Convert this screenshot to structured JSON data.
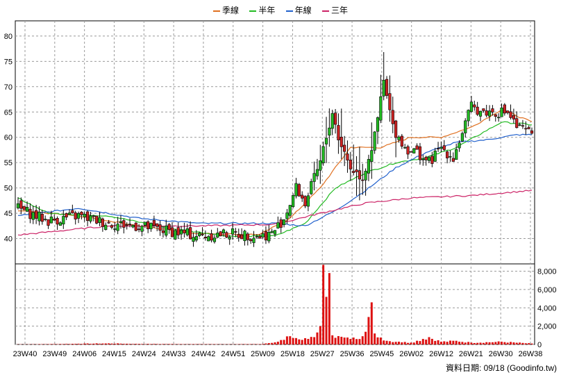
{
  "legend": [
    {
      "label": "季線",
      "color": "#e07020"
    },
    {
      "label": "半年",
      "color": "#22bb22"
    },
    {
      "label": "年線",
      "color": "#2060cc"
    },
    {
      "label": "三年",
      "color": "#cc2266"
    }
  ],
  "source_label": "資料日期: 09/18 (Goodinfo.tw)",
  "chart_data": [
    {
      "type": "candlestick",
      "title": "",
      "x_ticks": [
        "23W40",
        "23W49",
        "24W06",
        "24W15",
        "24W24",
        "24W33",
        "24W42",
        "24W51",
        "25W09",
        "25W18",
        "25W27",
        "25W36",
        "25W45",
        "26W02",
        "26W12",
        "26W21",
        "26W30",
        "26W38"
      ],
      "y_ticks": [
        40,
        45,
        50,
        55,
        60,
        65,
        70,
        75,
        80
      ],
      "ylim": [
        35,
        83
      ],
      "grid": true,
      "up_color": "#22bb22",
      "down_color": "#cc2222",
      "price_keypoints_week_close": [
        [
          0,
          46
        ],
        [
          10,
          43.5
        ],
        [
          20,
          44.5
        ],
        [
          30,
          43
        ],
        [
          40,
          42.5
        ],
        [
          50,
          41.5
        ],
        [
          60,
          40.5
        ],
        [
          70,
          41
        ],
        [
          80,
          40.5
        ],
        [
          84,
          41
        ],
        [
          88,
          44
        ],
        [
          92,
          50
        ],
        [
          95,
          47
        ],
        [
          100,
          55
        ],
        [
          104,
          65
        ],
        [
          106,
          60
        ],
        [
          110,
          54
        ],
        [
          114,
          52
        ],
        [
          118,
          60
        ],
        [
          121,
          71
        ],
        [
          124,
          62
        ],
        [
          128,
          58
        ],
        [
          132,
          57
        ],
        [
          136,
          55
        ],
        [
          140,
          58
        ],
        [
          144,
          56
        ],
        [
          147,
          61
        ],
        [
          150,
          66
        ],
        [
          154,
          65
        ],
        [
          158,
          65
        ],
        [
          162,
          65
        ],
        [
          165,
          62
        ],
        [
          168,
          61
        ],
        [
          170,
          61
        ]
      ],
      "ma_keypoints": {
        "季線": [
          [
            0,
            45.5
          ],
          [
            20,
            44.5
          ],
          [
            40,
            42.5
          ],
          [
            60,
            41
          ],
          [
            80,
            40.8
          ],
          [
            90,
            44
          ],
          [
            100,
            50
          ],
          [
            110,
            58
          ],
          [
            120,
            58
          ],
          [
            130,
            60
          ],
          [
            140,
            60
          ],
          [
            150,
            62
          ],
          [
            160,
            65.5
          ],
          [
            170,
            63
          ]
        ],
        "半年": [
          [
            0,
            48
          ],
          [
            10,
            45
          ],
          [
            30,
            44.5
          ],
          [
            50,
            42
          ],
          [
            70,
            40.5
          ],
          [
            85,
            40.5
          ],
          [
            95,
            43
          ],
          [
            105,
            50
          ],
          [
            115,
            53
          ],
          [
            125,
            55
          ],
          [
            135,
            56
          ],
          [
            145,
            58
          ],
          [
            160,
            63
          ],
          [
            170,
            62.5
          ]
        ],
        "年線": [
          [
            0,
            44.5
          ],
          [
            20,
            46
          ],
          [
            40,
            44
          ],
          [
            60,
            43
          ],
          [
            85,
            43
          ],
          [
            95,
            42.5
          ],
          [
            105,
            45.5
          ],
          [
            115,
            49.5
          ],
          [
            125,
            54
          ],
          [
            135,
            57
          ],
          [
            145,
            59
          ],
          [
            155,
            59.5
          ],
          [
            165,
            60.5
          ],
          [
            170,
            60.5
          ]
        ],
        "三年": [
          [
            0,
            40.7
          ],
          [
            30,
            42.5
          ],
          [
            60,
            42.5
          ],
          [
            85,
            42.8
          ],
          [
            100,
            45
          ],
          [
            115,
            47
          ],
          [
            130,
            48
          ],
          [
            150,
            48.5
          ],
          [
            170,
            49.5
          ]
        ]
      },
      "volume_keypoints": [
        [
          0,
          20
        ],
        [
          10,
          40
        ],
        [
          20,
          80
        ],
        [
          30,
          120
        ],
        [
          40,
          60
        ],
        [
          50,
          50
        ],
        [
          60,
          40
        ],
        [
          70,
          30
        ],
        [
          80,
          40
        ],
        [
          86,
          300
        ],
        [
          90,
          900
        ],
        [
          94,
          500
        ],
        [
          98,
          800
        ],
        [
          100,
          2000
        ],
        [
          101,
          8700
        ],
        [
          102,
          5200
        ],
        [
          103,
          7800
        ],
        [
          104,
          1000
        ],
        [
          110,
          600
        ],
        [
          114,
          900
        ],
        [
          116,
          3000
        ],
        [
          117,
          4600
        ],
        [
          118,
          1200
        ],
        [
          122,
          400
        ],
        [
          126,
          300
        ],
        [
          130,
          200
        ],
        [
          134,
          600
        ],
        [
          136,
          800
        ],
        [
          140,
          300
        ],
        [
          145,
          400
        ],
        [
          150,
          200
        ],
        [
          160,
          300
        ],
        [
          170,
          100
        ]
      ],
      "num_weeks": 171
    },
    {
      "type": "bar",
      "title": "",
      "y_ticks": [
        "0",
        "2,000",
        "4,000",
        "6,000",
        "8,000"
      ],
      "ylim": [
        0,
        8800
      ],
      "bar_color": "#dd1111",
      "grid": true
    }
  ]
}
